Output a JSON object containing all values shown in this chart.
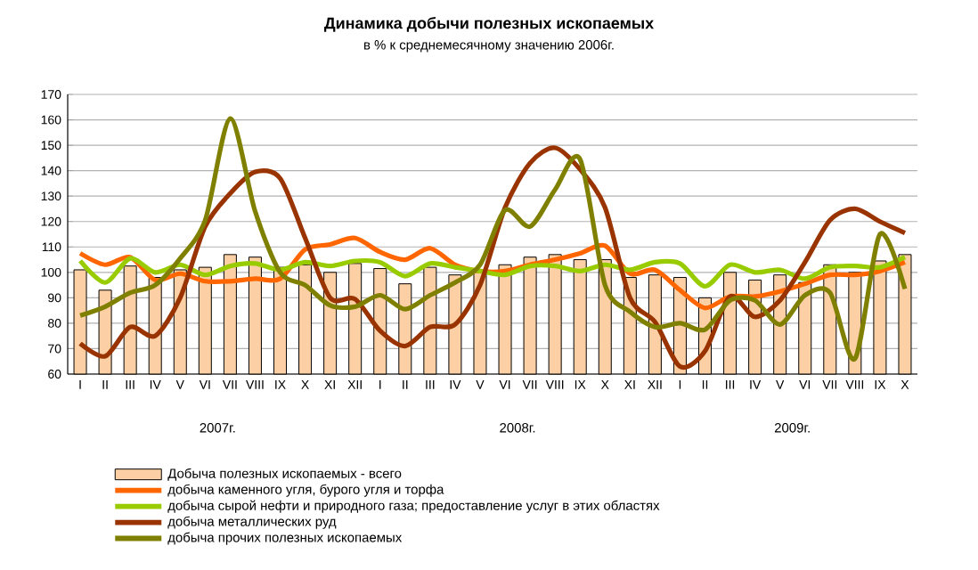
{
  "chart_data": {
    "type": "bar",
    "title": "Динамика добычи полезных ископаемых",
    "subtitle": "в % к среднемесячному значению 2006г.",
    "categories": [
      "I",
      "II",
      "III",
      "IV",
      "V",
      "VI",
      "VII",
      "VIII",
      "IX",
      "X",
      "XI",
      "XII",
      "I",
      "II",
      "III",
      "IV",
      "V",
      "VI",
      "VII",
      "VIII",
      "IX",
      "X",
      "XI",
      "XII",
      "I",
      "II",
      "III",
      "IV",
      "V",
      "VI",
      "VII",
      "VIII",
      "IX",
      "X"
    ],
    "annotations": [
      "2007г.",
      "2008г.",
      "2009г."
    ],
    "ylim": [
      60,
      170
    ],
    "yticks": [
      60,
      70,
      80,
      90,
      100,
      110,
      120,
      130,
      140,
      150,
      160,
      170
    ],
    "grid": "y",
    "legend": "bottom",
    "series": [
      {
        "name": "Добыча полезных ископаемых - всего",
        "color": "#fcd0a4",
        "values": [
          101,
          93,
          102.5,
          98,
          101,
          102,
          107,
          106,
          102,
          103,
          100,
          103.5,
          101.5,
          95.5,
          102,
          99,
          100,
          103,
          106,
          107,
          105,
          105,
          98,
          99,
          98,
          90,
          100,
          97,
          99,
          96,
          103,
          100,
          104.5,
          107
        ]
      },
      {
        "type": "line",
        "name": "добыча каменного угля, бурого угля и торфа",
        "color": "#ff6600",
        "values": [
          107.5,
          103,
          106,
          97,
          99.5,
          96.5,
          96.5,
          97.5,
          97.5,
          109,
          111,
          113.5,
          108,
          105,
          109.5,
          103,
          100.5,
          100.5,
          103,
          105,
          107.5,
          110.5,
          99.5,
          101,
          93,
          86,
          90.5,
          90.5,
          92.5,
          95.5,
          99,
          99,
          100.5,
          104
        ]
      },
      {
        "type": "line",
        "name": "добыча сырой нефти и природного газа; предоставление услуг в этих областях",
        "color": "#99cc00",
        "values": [
          104.5,
          96,
          105.5,
          100,
          103,
          99,
          102.5,
          103.5,
          101,
          104,
          102.5,
          104.5,
          104,
          98.5,
          103.5,
          102,
          100.5,
          99,
          102.5,
          102.5,
          100.5,
          103,
          101,
          104,
          103.5,
          94.5,
          103,
          100,
          101,
          97.5,
          102,
          102.5,
          102,
          106
        ]
      },
      {
        "type": "line",
        "name": "добыча металлических руд",
        "color": "#993300",
        "values": [
          72,
          67,
          78.5,
          75,
          90,
          118,
          131,
          139.5,
          137,
          113.5,
          90,
          89.5,
          77,
          71,
          78.5,
          79.5,
          95,
          125.5,
          143,
          149,
          140.5,
          125.5,
          90,
          80.5,
          63,
          69,
          90.5,
          82.5,
          89,
          104,
          120.5,
          125,
          120,
          115.5
        ]
      },
      {
        "type": "line",
        "name": "добыча прочих полезных ископаемых",
        "color": "#808000",
        "values": [
          83,
          86.5,
          92,
          95,
          105.5,
          120.5,
          160.5,
          124,
          100,
          95,
          87,
          86.5,
          91,
          85.5,
          91,
          96,
          103,
          124.5,
          118,
          132.5,
          144.5,
          95,
          84.5,
          78.5,
          80,
          77.5,
          89,
          89,
          79.5,
          91,
          92,
          66,
          115,
          93.5
        ]
      }
    ]
  }
}
